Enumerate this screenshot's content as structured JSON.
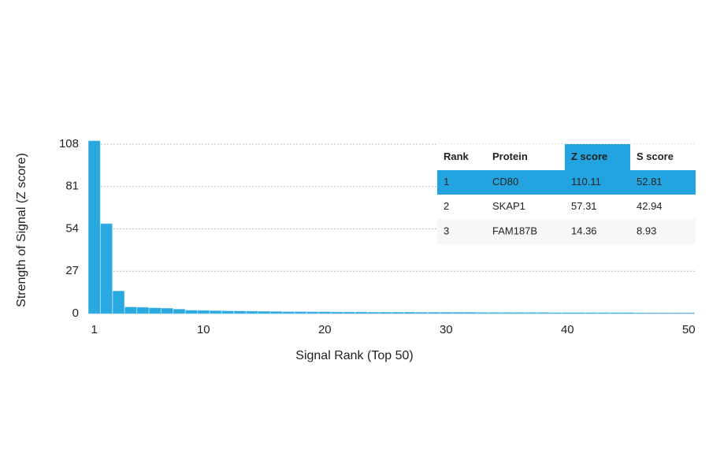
{
  "chart_data": {
    "type": "bar",
    "xlabel": "Signal Rank (Top 50)",
    "ylabel": "Strength of Signal (Z score)",
    "x": [
      1,
      2,
      3,
      4,
      5,
      6,
      7,
      8,
      9,
      10,
      11,
      12,
      13,
      14,
      15,
      16,
      17,
      18,
      19,
      20,
      21,
      22,
      23,
      24,
      25,
      26,
      27,
      28,
      29,
      30,
      31,
      32,
      33,
      34,
      35,
      36,
      37,
      38,
      39,
      40,
      41,
      42,
      43,
      44,
      45,
      46,
      47,
      48,
      49,
      50
    ],
    "values": [
      110.11,
      57.31,
      14.36,
      4.2,
      4.0,
      3.6,
      3.4,
      2.8,
      2.1,
      2.0,
      1.8,
      1.7,
      1.6,
      1.5,
      1.4,
      1.3,
      1.2,
      1.2,
      1.1,
      1.1,
      1.0,
      1.0,
      1.0,
      0.9,
      0.9,
      0.9,
      0.9,
      0.8,
      0.8,
      0.8,
      0.8,
      0.8,
      0.7,
      0.7,
      0.7,
      0.7,
      0.7,
      0.7,
      0.6,
      0.6,
      0.6,
      0.6,
      0.6,
      0.6,
      0.6,
      0.5,
      0.5,
      0.5,
      0.5,
      0.5
    ],
    "color": "#2aa8e0",
    "xlim": [
      0.5,
      50.5
    ],
    "xticks": [
      1,
      10,
      20,
      30,
      40,
      50
    ],
    "ylim": [
      0,
      108
    ],
    "yticks": [
      0,
      27,
      54,
      81,
      108
    ],
    "grid": true,
    "table": {
      "columns": [
        "Rank",
        "Protein",
        "Z score",
        "S score"
      ],
      "rows": [
        [
          1,
          "CD80",
          110.11,
          52.81
        ],
        [
          2,
          "SKAP1",
          57.31,
          42.94
        ],
        [
          3,
          "FAM187B",
          14.36,
          8.93
        ]
      ],
      "highlight_row": 0,
      "highlight_column": 2,
      "highlight_color": "#23a4e0"
    }
  }
}
